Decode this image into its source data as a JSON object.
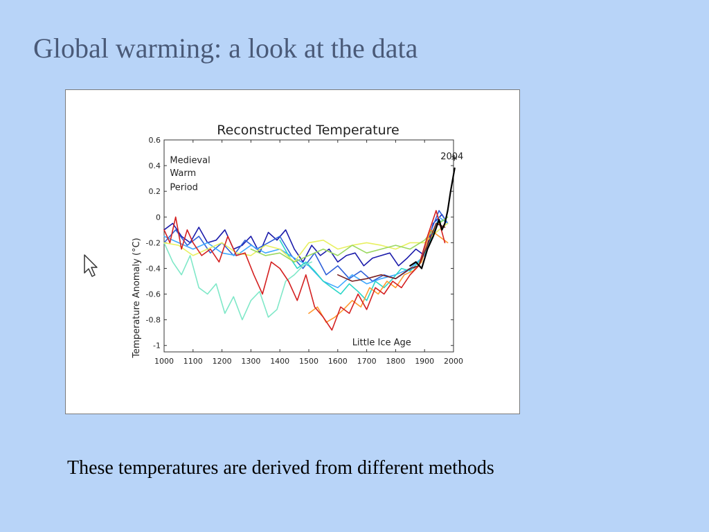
{
  "slide": {
    "title": "Global warming: a look at the data",
    "caption": "These temperatures are derived from different methods"
  },
  "pointer": {
    "icon": "arrow-cursor-icon"
  },
  "chart_data": {
    "type": "line",
    "title": "Reconstructed Temperature",
    "xlabel": "",
    "ylabel": "Temperature Anomaly (°C)",
    "xlim": [
      1000,
      2000
    ],
    "ylim": [
      -1.05,
      0.6
    ],
    "xticks": [
      1000,
      1100,
      1200,
      1300,
      1400,
      1500,
      1600,
      1700,
      1800,
      1900,
      2000
    ],
    "yticks": [
      0.6,
      0.4,
      0.2,
      0,
      -0.2,
      -0.4,
      -0.6,
      -0.8,
      -1
    ],
    "ytick_labels": [
      "0.6",
      "0.4",
      "0.2",
      "0",
      "-0.2",
      "-0.4",
      "-0.6",
      "-0.8",
      "-1"
    ],
    "grid": false,
    "annotations": [
      {
        "text": "Medieval",
        "x": 1020,
        "y": 0.42
      },
      {
        "text": "Warm",
        "x": 1020,
        "y": 0.32
      },
      {
        "text": "Period",
        "x": 1020,
        "y": 0.21
      },
      {
        "text": "Little Ice Age",
        "x": 1650,
        "y": -1.0
      },
      {
        "text": "2004",
        "x": 1955,
        "y": 0.45
      }
    ],
    "marker": {
      "x": 2004,
      "y": 0.45,
      "symbol": "*"
    },
    "series": [
      {
        "color": "#1a1aaa",
        "x": [
          1000,
          1030,
          1060,
          1090,
          1120,
          1150,
          1180,
          1210,
          1240,
          1270,
          1300,
          1330,
          1360,
          1390,
          1420,
          1450,
          1480,
          1510,
          1540,
          1570,
          1600,
          1630,
          1660,
          1690,
          1720,
          1750,
          1780,
          1810,
          1840,
          1870,
          1900,
          1930,
          1960,
          1980
        ],
        "y": [
          -0.1,
          -0.05,
          -0.15,
          -0.2,
          -0.08,
          -0.2,
          -0.18,
          -0.1,
          -0.25,
          -0.22,
          -0.15,
          -0.28,
          -0.12,
          -0.18,
          -0.1,
          -0.25,
          -0.35,
          -0.22,
          -0.3,
          -0.25,
          -0.35,
          -0.3,
          -0.28,
          -0.38,
          -0.32,
          -0.3,
          -0.28,
          -0.38,
          -0.32,
          -0.25,
          -0.3,
          -0.05,
          0.02,
          -0.05
        ]
      },
      {
        "color": "#2e5fd8",
        "x": [
          1000,
          1040,
          1080,
          1120,
          1160,
          1200,
          1240,
          1280,
          1320,
          1360,
          1400,
          1440,
          1480,
          1520,
          1560,
          1600,
          1640,
          1680,
          1720,
          1760,
          1800,
          1840,
          1880,
          1920,
          1950,
          1980
        ],
        "y": [
          -0.2,
          -0.1,
          -0.22,
          -0.15,
          -0.28,
          -0.2,
          -0.3,
          -0.18,
          -0.25,
          -0.2,
          -0.15,
          -0.3,
          -0.4,
          -0.28,
          -0.45,
          -0.38,
          -0.48,
          -0.42,
          -0.5,
          -0.45,
          -0.48,
          -0.42,
          -0.38,
          -0.12,
          0.05,
          -0.05
        ]
      },
      {
        "color": "#3fa8ff",
        "x": [
          1000,
          1050,
          1100,
          1150,
          1200,
          1250,
          1300,
          1350,
          1400,
          1450,
          1500,
          1550,
          1600,
          1650,
          1700,
          1750,
          1800,
          1850,
          1900,
          1950,
          1980
        ],
        "y": [
          -0.15,
          -0.2,
          -0.25,
          -0.2,
          -0.28,
          -0.3,
          -0.22,
          -0.28,
          -0.25,
          -0.32,
          -0.38,
          -0.5,
          -0.55,
          -0.45,
          -0.52,
          -0.48,
          -0.45,
          -0.4,
          -0.3,
          0.0,
          -0.05
        ]
      },
      {
        "color": "#2ad6c8",
        "x": [
          1400,
          1430,
          1460,
          1490,
          1520,
          1550,
          1580,
          1610,
          1640,
          1670,
          1700,
          1730,
          1760,
          1790,
          1820,
          1850,
          1880,
          1910,
          1940,
          1970
        ],
        "y": [
          -0.18,
          -0.3,
          -0.4,
          -0.35,
          -0.42,
          -0.5,
          -0.55,
          -0.6,
          -0.52,
          -0.58,
          -0.65,
          -0.5,
          -0.55,
          -0.48,
          -0.4,
          -0.42,
          -0.35,
          -0.25,
          -0.05,
          -0.02
        ]
      },
      {
        "color": "#7fe8c8",
        "x": [
          1000,
          1030,
          1060,
          1090,
          1120,
          1150,
          1180,
          1210,
          1240,
          1270,
          1300,
          1330,
          1360,
          1390,
          1420,
          1450,
          1480,
          1510
        ],
        "y": [
          -0.2,
          -0.35,
          -0.45,
          -0.3,
          -0.55,
          -0.6,
          -0.52,
          -0.75,
          -0.62,
          -0.8,
          -0.65,
          -0.58,
          -0.78,
          -0.72,
          -0.5,
          -0.45,
          -0.38,
          -0.35
        ]
      },
      {
        "color": "#e8f060",
        "x": [
          1000,
          1050,
          1100,
          1150,
          1200,
          1250,
          1300,
          1350,
          1400,
          1450,
          1500,
          1550,
          1600,
          1650,
          1700,
          1750,
          1800,
          1850,
          1900,
          1950,
          1980
        ],
        "y": [
          -0.2,
          -0.22,
          -0.3,
          -0.25,
          -0.2,
          -0.28,
          -0.3,
          -0.22,
          -0.25,
          -0.35,
          -0.2,
          -0.18,
          -0.25,
          -0.22,
          -0.2,
          -0.22,
          -0.25,
          -0.2,
          -0.2,
          -0.1,
          -0.05
        ]
      },
      {
        "color": "#9ad860",
        "x": [
          1300,
          1350,
          1400,
          1450,
          1500,
          1550,
          1600,
          1650,
          1700,
          1750,
          1800,
          1850,
          1900,
          1950,
          1980
        ],
        "y": [
          -0.25,
          -0.3,
          -0.28,
          -0.35,
          -0.3,
          -0.25,
          -0.3,
          -0.22,
          -0.28,
          -0.25,
          -0.22,
          -0.25,
          -0.18,
          -0.05,
          0.0
        ]
      },
      {
        "color": "#ff9a30",
        "x": [
          1500,
          1530,
          1560,
          1590,
          1620,
          1650,
          1680,
          1710,
          1740,
          1770,
          1800,
          1830,
          1860,
          1890,
          1920,
          1950,
          1980
        ],
        "y": [
          -0.75,
          -0.7,
          -0.82,
          -0.78,
          -0.72,
          -0.65,
          -0.7,
          -0.55,
          -0.6,
          -0.5,
          -0.55,
          -0.45,
          -0.42,
          -0.35,
          -0.1,
          -0.15,
          -0.2
        ]
      },
      {
        "color": "#d42020",
        "x": [
          1000,
          1020,
          1040,
          1060,
          1080,
          1100,
          1130,
          1160,
          1190,
          1220,
          1250,
          1280,
          1310,
          1340,
          1370,
          1400,
          1430,
          1460,
          1490,
          1520,
          1550,
          1580,
          1610,
          1640,
          1670,
          1700,
          1730,
          1760,
          1790,
          1820,
          1850,
          1880,
          1910,
          1940,
          1970
        ],
        "y": [
          -0.1,
          -0.2,
          0.0,
          -0.25,
          -0.1,
          -0.2,
          -0.3,
          -0.25,
          -0.35,
          -0.15,
          -0.3,
          -0.28,
          -0.45,
          -0.6,
          -0.35,
          -0.4,
          -0.5,
          -0.65,
          -0.45,
          -0.7,
          -0.78,
          -0.88,
          -0.7,
          -0.75,
          -0.6,
          -0.72,
          -0.55,
          -0.6,
          -0.5,
          -0.55,
          -0.45,
          -0.38,
          -0.15,
          0.05,
          -0.2
        ]
      },
      {
        "color": "#7a2020",
        "x": [
          1600,
          1650,
          1700,
          1750,
          1800,
          1850,
          1880,
          1910,
          1940,
          1970
        ],
        "y": [
          -0.45,
          -0.5,
          -0.48,
          -0.45,
          -0.48,
          -0.4,
          -0.38,
          -0.22,
          -0.05,
          -0.08
        ]
      },
      {
        "color": "#000000",
        "x": [
          1850,
          1870,
          1890,
          1910,
          1930,
          1950,
          1960,
          1970,
          1980,
          1990,
          2004
        ],
        "y": [
          -0.38,
          -0.35,
          -0.4,
          -0.25,
          -0.15,
          -0.02,
          -0.1,
          -0.05,
          0.05,
          0.2,
          0.38
        ]
      }
    ]
  }
}
